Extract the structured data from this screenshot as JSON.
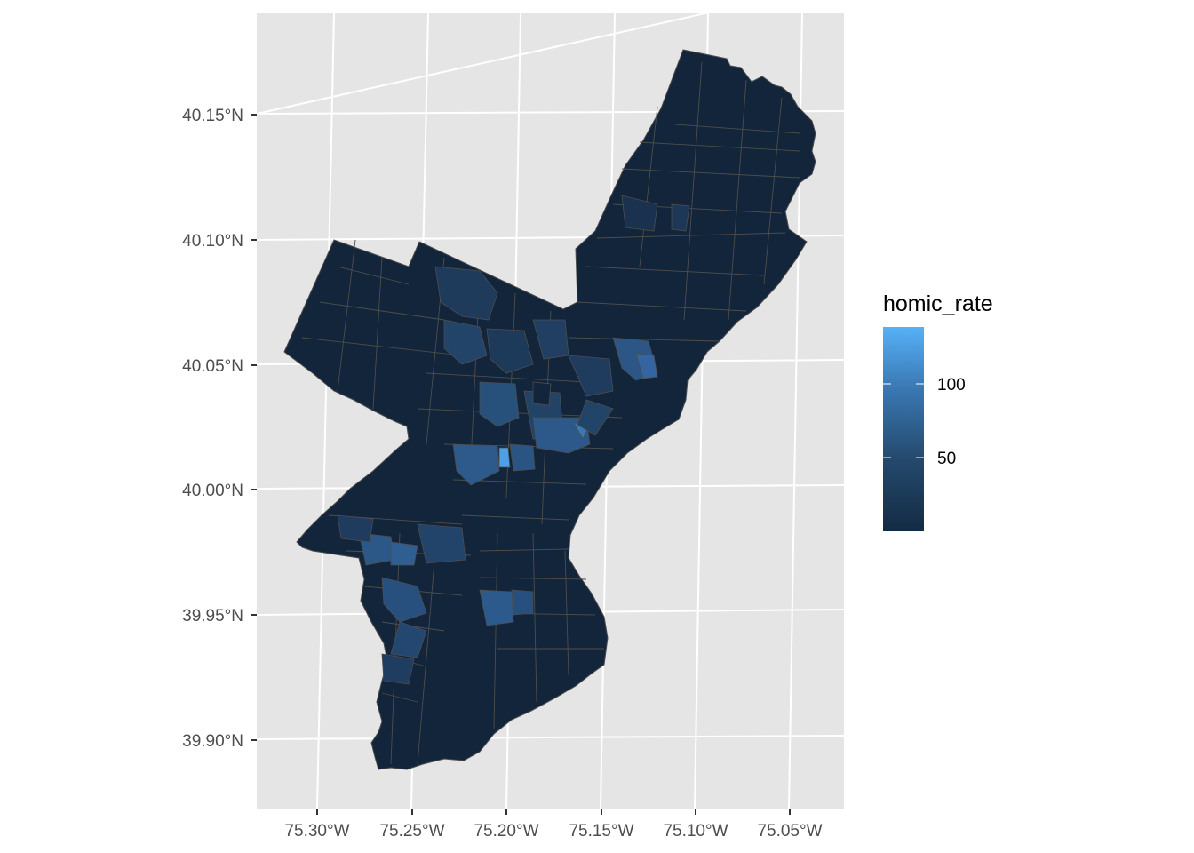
{
  "axes": {
    "y_ticks": [
      "40.15°N",
      "40.10°N",
      "40.05°N",
      "40.00°N",
      "39.95°N",
      "39.90°N"
    ],
    "x_ticks": [
      "75.30°W",
      "75.25°W",
      "75.20°W",
      "75.15°W",
      "75.10°W",
      "75.05°W"
    ]
  },
  "legend": {
    "title": "homic_rate",
    "labels": [
      "100",
      "50"
    ],
    "color_low": "#132b43",
    "color_high": "#56b1f7"
  },
  "colors": {
    "panel_background": "#e5e5e5",
    "grid": "#ffffff",
    "tract_border": "#4d4d4d",
    "base_fill": "#13253a",
    "high_fill": "#4da0e8"
  }
}
